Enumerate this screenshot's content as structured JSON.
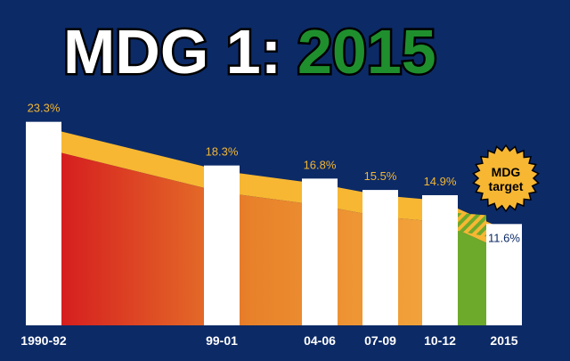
{
  "title": {
    "prefix": "MDG 1:",
    "year": "2015",
    "prefix_color": "#ffffff",
    "year_color": "#1f8f2e"
  },
  "colors": {
    "background": "#0c2a66",
    "bar": "#ffffff",
    "value_label": "#f2b632",
    "target_value_label": "#0c2a66",
    "tick_label": "#ffffff",
    "band": "#f7b733",
    "wedge_start": "#d4151e",
    "wedge_mid": "#e8812a",
    "wedge_end": "#f2a23a",
    "wedge_green": "#6da92b",
    "badge_fill": "#f7b733",
    "badge_text": "#000000"
  },
  "badge": {
    "line1": "MDG",
    "line2": "target"
  },
  "chart_data": {
    "type": "bar",
    "title": "MDG 1: 2015",
    "categories": [
      "1990-92",
      "99-01",
      "04-06",
      "07-09",
      "10-12",
      "2015"
    ],
    "values": [
      23.3,
      18.3,
      16.8,
      15.5,
      14.9,
      11.6
    ],
    "value_labels": [
      "23.3%",
      "18.3%",
      "16.8%",
      "15.5%",
      "14.9%",
      "11.6%"
    ],
    "target_category": "2015",
    "target_annotation": "MDG target",
    "ylim": [
      0,
      25
    ],
    "grid": false,
    "legend": "none"
  }
}
